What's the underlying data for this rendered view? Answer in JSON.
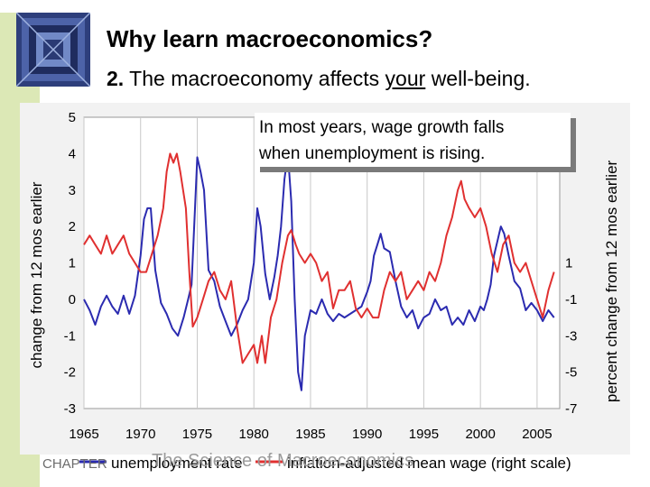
{
  "slide": {
    "title": "Why learn macroeconomics?",
    "subtitle_number": "2.",
    "subtitle_pre": "The macroeconomy affects",
    "subtitle_underlined": "your",
    "subtitle_post": "well-being.",
    "footer_left": "CHAPTER",
    "footer_mid": "The Science of Macroeconomics"
  },
  "colors": {
    "left_stripe": "#dce8b6",
    "plot_bg": "#f2f2f2",
    "unemployment": "#2b2bb0",
    "wage": "#e03030",
    "callout_bg": "#ffffff",
    "callout_shadow": "#7a7a7a"
  },
  "chart_data": {
    "type": "line",
    "callout": [
      "In most years, wage growth falls",
      "when unemployment is rising."
    ],
    "ylabel_left": "change from 12 mos earlier",
    "ylabel_right": "percent change from 12 mos earlier",
    "xlim": [
      1965,
      2007
    ],
    "ylim_left": [
      -3,
      5
    ],
    "ylim_right": [
      -7,
      9
    ],
    "x_ticks": [
      "1965",
      "1970",
      "1975",
      "1980",
      "1985",
      "1990",
      "1995",
      "2000",
      "2005"
    ],
    "y_ticks_left": [
      "5",
      "4",
      "3",
      "2",
      "1",
      "0",
      "-1",
      "-2",
      "-3"
    ],
    "y_ticks_right": [
      "1",
      "-1",
      "-3",
      "-5",
      "-7"
    ],
    "legend": [
      "unemployment rate",
      "inflation-adjusted mean wage (right scale)"
    ],
    "series": [
      {
        "name": "unemployment rate",
        "axis": "left",
        "x": [
          1965.0,
          1965.5,
          1966.0,
          1966.5,
          1967.0,
          1967.5,
          1968.0,
          1968.5,
          1969.0,
          1969.5,
          1970.0,
          1970.3,
          1970.6,
          1970.9,
          1971.3,
          1971.8,
          1972.3,
          1972.8,
          1973.3,
          1973.8,
          1974.2,
          1974.5,
          1974.8,
          1975.0,
          1975.3,
          1975.6,
          1976.0,
          1976.5,
          1977.0,
          1977.5,
          1978.0,
          1978.5,
          1979.0,
          1979.5,
          1980.0,
          1980.3,
          1980.6,
          1981.0,
          1981.4,
          1981.8,
          1982.1,
          1982.4,
          1982.7,
          1983.0,
          1983.3,
          1983.6,
          1983.9,
          1984.2,
          1984.5,
          1985.0,
          1985.5,
          1986.0,
          1986.5,
          1987.0,
          1987.5,
          1988.0,
          1988.5,
          1989.0,
          1989.5,
          1990.0,
          1990.3,
          1990.6,
          1990.9,
          1991.2,
          1991.5,
          1992.0,
          1992.5,
          1993.0,
          1993.5,
          1994.0,
          1994.5,
          1995.0,
          1995.5,
          1996.0,
          1996.5,
          1997.0,
          1997.5,
          1998.0,
          1998.5,
          1999.0,
          1999.5,
          2000.0,
          2000.3,
          2000.6,
          2000.9,
          2001.2,
          2001.5,
          2001.8,
          2002.1,
          2002.5,
          2003.0,
          2003.5,
          2004.0,
          2004.5,
          2005.0,
          2005.5,
          2006.0,
          2006.5
        ],
        "values": [
          0.0,
          -0.3,
          -0.7,
          -0.2,
          0.1,
          -0.2,
          -0.4,
          0.1,
          -0.4,
          0.1,
          1.2,
          2.2,
          2.5,
          2.5,
          0.8,
          -0.1,
          -0.4,
          -0.8,
          -1.0,
          -0.5,
          0.0,
          0.4,
          2.5,
          3.9,
          3.5,
          3.0,
          0.8,
          0.5,
          -0.2,
          -0.6,
          -1.0,
          -0.7,
          -0.3,
          0.0,
          1.0,
          2.5,
          2.0,
          0.7,
          0.0,
          0.6,
          1.2,
          2.0,
          3.3,
          4.0,
          2.7,
          0.0,
          -2.0,
          -2.5,
          -1.0,
          -0.3,
          -0.4,
          0.0,
          -0.4,
          -0.6,
          -0.4,
          -0.5,
          -0.4,
          -0.3,
          -0.2,
          0.2,
          0.5,
          1.2,
          1.5,
          1.8,
          1.4,
          1.3,
          0.5,
          -0.2,
          -0.5,
          -0.3,
          -0.8,
          -0.5,
          -0.4,
          0.0,
          -0.3,
          -0.2,
          -0.7,
          -0.5,
          -0.7,
          -0.3,
          -0.6,
          -0.2,
          -0.3,
          0.0,
          0.4,
          1.2,
          1.6,
          2.0,
          1.8,
          1.2,
          0.5,
          0.3,
          -0.3,
          -0.1,
          -0.3,
          -0.6,
          -0.3,
          -0.5
        ]
      },
      {
        "name": "inflation-adjusted mean wage (right scale)",
        "axis": "right",
        "x": [
          1965.0,
          1965.5,
          1966.0,
          1966.5,
          1967.0,
          1967.5,
          1968.0,
          1968.5,
          1969.0,
          1969.5,
          1970.0,
          1970.5,
          1971.0,
          1971.5,
          1972.0,
          1972.3,
          1972.6,
          1972.9,
          1973.2,
          1973.5,
          1974.0,
          1974.3,
          1974.6,
          1975.0,
          1975.5,
          1976.0,
          1976.5,
          1977.0,
          1977.5,
          1978.0,
          1978.5,
          1979.0,
          1979.5,
          1980.0,
          1980.3,
          1980.7,
          1981.0,
          1981.5,
          1982.0,
          1982.5,
          1983.0,
          1983.3,
          1983.7,
          1984.0,
          1984.5,
          1985.0,
          1985.5,
          1986.0,
          1986.5,
          1987.0,
          1987.5,
          1988.0,
          1988.5,
          1989.0,
          1989.5,
          1990.0,
          1990.5,
          1991.0,
          1991.5,
          1992.0,
          1992.5,
          1993.0,
          1993.5,
          1994.0,
          1994.5,
          1995.0,
          1995.5,
          1996.0,
          1996.5,
          1997.0,
          1997.5,
          1998.0,
          1998.3,
          1998.6,
          1999.0,
          1999.5,
          2000.0,
          2000.5,
          2001.0,
          2001.5,
          2002.0,
          2002.5,
          2003.0,
          2003.5,
          2004.0,
          2004.5,
          2005.0,
          2005.5,
          2006.0,
          2006.5
        ],
        "values": [
          2.0,
          2.5,
          2.0,
          1.5,
          2.5,
          1.5,
          2.0,
          2.5,
          1.5,
          1.0,
          0.5,
          0.5,
          1.5,
          2.5,
          4.0,
          6.0,
          7.0,
          6.5,
          7.0,
          6.0,
          4.0,
          0.5,
          -2.5,
          -2.0,
          -1.0,
          0.0,
          0.5,
          -0.5,
          -1.0,
          0.0,
          -2.5,
          -4.5,
          -4.0,
          -3.5,
          -4.5,
          -3.0,
          -4.5,
          -2.0,
          -1.0,
          1.0,
          2.5,
          2.8,
          2.0,
          1.5,
          1.0,
          1.5,
          1.0,
          0.0,
          0.5,
          -1.5,
          -0.5,
          -0.5,
          0.0,
          -1.5,
          -2.0,
          -1.5,
          -2.0,
          -2.0,
          -0.5,
          0.5,
          0.0,
          0.5,
          -1.0,
          -0.5,
          0.0,
          -0.5,
          0.5,
          0.0,
          1.0,
          2.5,
          3.5,
          5.0,
          5.5,
          4.5,
          4.0,
          3.5,
          4.0,
          3.0,
          1.5,
          0.5,
          2.0,
          2.5,
          1.0,
          0.5,
          1.0,
          0.0,
          -1.0,
          -2.0,
          -0.5,
          0.5
        ]
      }
    ]
  }
}
